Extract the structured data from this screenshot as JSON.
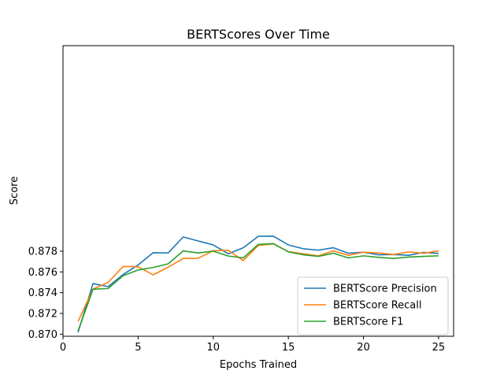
{
  "chart_data": {
    "type": "line",
    "title": "BERTScores Over Time",
    "xlabel": "Epochs Trained",
    "ylabel": "Score",
    "xlim": [
      0,
      26
    ],
    "ylim": [
      0.8698,
      0.8978
    ],
    "xticks": [
      0,
      5,
      10,
      15,
      20,
      25
    ],
    "yticks": [
      0.87,
      0.872,
      0.874,
      0.876,
      0.878
    ],
    "ytick_labels": [
      "0.870",
      "0.872",
      "0.874",
      "0.876",
      "0.878"
    ],
    "grid": false,
    "legend": "bottom-right",
    "x": [
      1,
      2,
      3,
      4,
      5,
      6,
      7,
      8,
      9,
      10,
      11,
      12,
      13,
      14,
      15,
      16,
      17,
      18,
      19,
      20,
      21,
      22,
      23,
      24,
      25
    ],
    "series": [
      {
        "name": "BERTScore Precision",
        "color": "#1f77b4",
        "values": [
          0.87018,
          0.87488,
          0.87458,
          0.87575,
          0.87667,
          0.87785,
          0.87783,
          0.87937,
          0.87898,
          0.8786,
          0.87775,
          0.87833,
          0.87943,
          0.87945,
          0.8786,
          0.87823,
          0.8781,
          0.87833,
          0.8778,
          0.8779,
          0.87765,
          0.87768,
          0.8776,
          0.87788,
          0.87778
        ]
      },
      {
        "name": "BERTScore Recall",
        "color": "#ff7f0e",
        "values": [
          0.87123,
          0.87435,
          0.87498,
          0.87653,
          0.8765,
          0.87572,
          0.87645,
          0.8773,
          0.87732,
          0.87805,
          0.87808,
          0.8771,
          0.87855,
          0.8787,
          0.87795,
          0.87775,
          0.87755,
          0.87803,
          0.8776,
          0.8779,
          0.87783,
          0.87768,
          0.87793,
          0.8778,
          0.87803
        ]
      },
      {
        "name": "BERTScore F1",
        "color": "#2ca02c",
        "values": [
          0.8703,
          0.87433,
          0.8744,
          0.87563,
          0.87618,
          0.87643,
          0.87678,
          0.87802,
          0.87783,
          0.878,
          0.87753,
          0.87735,
          0.87865,
          0.87873,
          0.87793,
          0.87765,
          0.8775,
          0.8778,
          0.87735,
          0.87755,
          0.8774,
          0.8773,
          0.87743,
          0.8775,
          0.87755
        ]
      }
    ]
  }
}
